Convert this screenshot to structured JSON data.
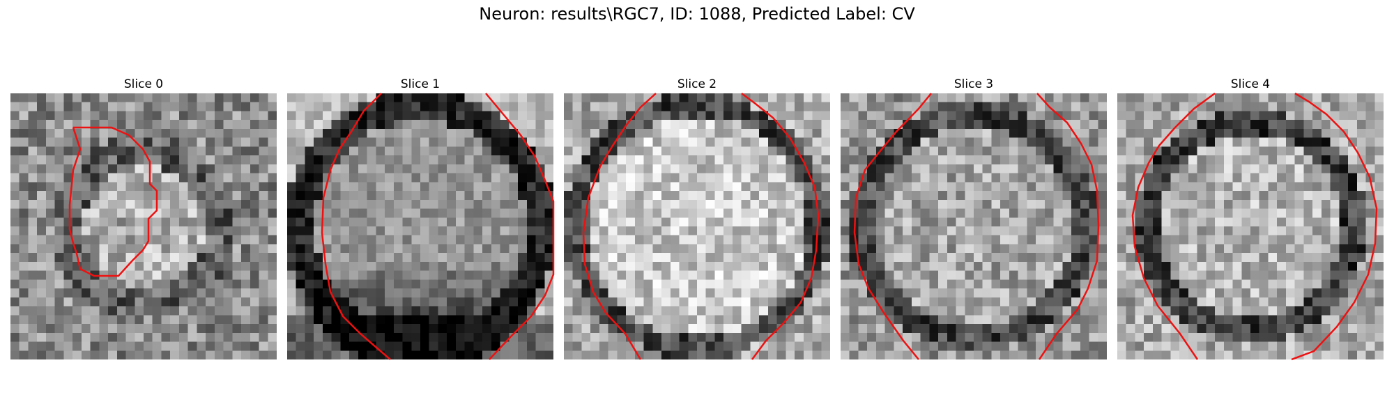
{
  "figure": {
    "title": "Neuron: results\\RGC7, ID: 1088, Predicted Label: CV"
  },
  "contour_color": "#ee1111",
  "slices": [
    {
      "label": "Slice 0"
    },
    {
      "label": "Slice 1"
    },
    {
      "label": "Slice 2"
    },
    {
      "label": "Slice 3"
    },
    {
      "label": "Slice 4"
    }
  ]
}
